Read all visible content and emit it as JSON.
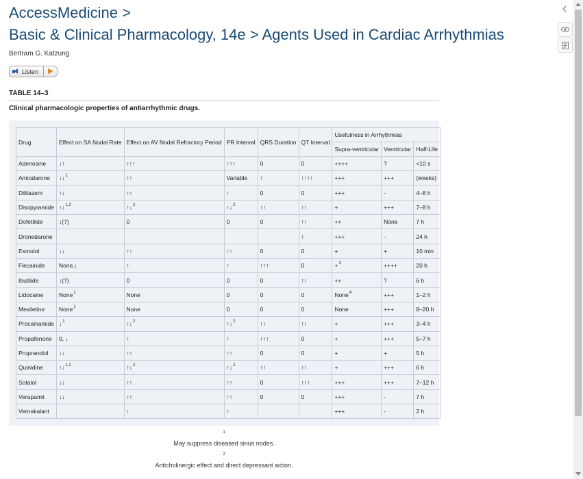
{
  "header": {
    "breadcrumb_root": "AccessMedicine >",
    "breadcrumb_path": "Basic & Clinical Pharmacology, 14e > Agents Used in Cardiac Arrhythmias",
    "author": "Bertram G. Katzung"
  },
  "listen": {
    "label": "Listen"
  },
  "table": {
    "label": "TABLE 14–3",
    "caption": "Clinical pharmacologic properties of antiarrhythmic drugs.",
    "headers": {
      "drug": "Drug",
      "sa": "Effect on SA Nodal Rate",
      "av": "Effect on AV Nodal Refractory Period",
      "pr": "PR Interval",
      "qrs": "QRS Duration",
      "qt": "QT Interval",
      "usefulness": "Usefulness in Arrhythmias",
      "supra": "Supra-ventricular",
      "ventricular": "Ventricular",
      "halflife": "Half-Life"
    },
    "rows": [
      [
        "Adenosine",
        "↓↑",
        "↑↑↑",
        "↑↑↑",
        "0",
        "0",
        "++++",
        "?",
        "<10 s"
      ],
      [
        "Amiodarone",
        "↓↓",
        "↑↑",
        "Variable",
        "↑",
        "↑↑↑↑",
        "+++",
        "+++",
        "(weeks)"
      ],
      [
        "Diltiazem",
        "↑↓",
        "↑↑",
        "↑",
        "0",
        "0",
        "+++",
        "-",
        "4–8 h"
      ],
      [
        "Disopyramide",
        "↑↓",
        "↑↓",
        "↑↓",
        "↑↑",
        "↑↑",
        "+",
        "+++",
        "7–8 h"
      ],
      [
        "Dofetilide",
        "↓(?)",
        "0",
        "0",
        "0",
        "↑↑",
        "++",
        "None",
        "7 h"
      ],
      [
        "Dronedarone",
        "",
        "",
        "",
        "",
        "↑",
        "+++",
        "-",
        "24 h"
      ],
      [
        "Esmolol",
        "↓↓",
        "↑↑",
        "↑↑",
        "0",
        "0",
        "+",
        "+",
        "10 min"
      ],
      [
        "Flecainide",
        "None,↓",
        "↑",
        "↑",
        "↑↑↑",
        "0",
        "+",
        "++++",
        "20 h"
      ],
      [
        "Ibutilide",
        "↓(?)",
        "0",
        "0",
        "0",
        "↑↑",
        "++",
        "?",
        "6 h"
      ],
      [
        "Lidocaine",
        "None",
        "None",
        "0",
        "0",
        "0",
        "None",
        "+++",
        "1–2 h"
      ],
      [
        "Mexiletine",
        "None",
        "None",
        "0",
        "0",
        "0",
        "None",
        "+++",
        "8–20 h"
      ],
      [
        "Procainamide",
        "↓",
        "↑↓",
        "↑↓",
        "↑↑",
        "↑↑",
        "+",
        "+++",
        "3–4 h"
      ],
      [
        "Propafenone",
        "0, ↓",
        "↑",
        "↑",
        "↑↑↑",
        "0",
        "+",
        "+++",
        "5–7 h"
      ],
      [
        "Propranolol",
        "↓↓",
        "↑↑",
        "↑↑",
        "0",
        "0",
        "+",
        "+",
        "5 h"
      ],
      [
        "Quinidine",
        "↑↓",
        "↑↓",
        "↑↓",
        "↑↑",
        "↑↑",
        "+",
        "+++",
        "6 h"
      ],
      [
        "Sotalol",
        "↓↓",
        "↑↑",
        "↑↑",
        "0",
        "↑↑↑",
        "+++",
        "+++",
        "7–12 h"
      ],
      [
        "Verapamil",
        "↓↓",
        "↑↑",
        "↑↑",
        "0",
        "0",
        "+++",
        "-",
        "7 h"
      ],
      [
        "Vernakalant",
        "",
        "↑",
        "↑",
        "",
        "",
        "+++",
        "-",
        "2 h"
      ]
    ],
    "superscripts": {
      "1-1": "1",
      "3-1": "1,2",
      "3-2": "2",
      "3-3": "2",
      "7-6": "3",
      "9-1": "1",
      "9-6": "4",
      "10-1": "1",
      "11-1": "1",
      "11-2": "2",
      "11-3": "2",
      "14-1": "1,2",
      "14-2": "2",
      "14-3": "2"
    }
  },
  "footnotes": [
    {
      "mark": "1",
      "text": "May suppress diseased sinus nodes."
    },
    {
      "mark": "2",
      "text": "Anticholinergic effect and direct depressant action."
    }
  ],
  "rail": {
    "collapse_icon": "chevron-left-icon",
    "view_icon": "eye-icon",
    "notes_icon": "notes-icon"
  }
}
